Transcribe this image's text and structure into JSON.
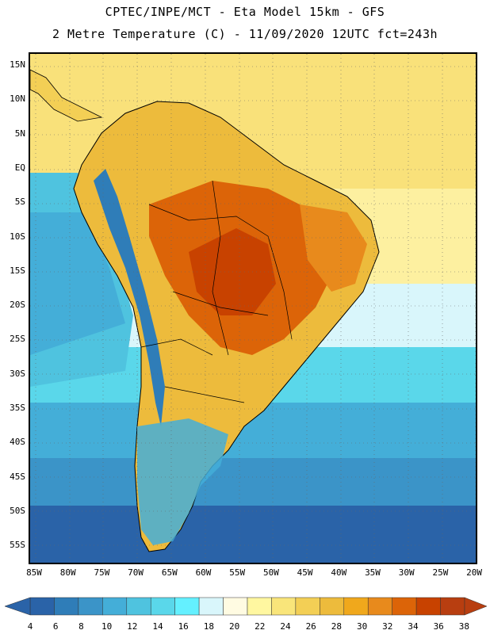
{
  "header": {
    "line1": "CPTEC/INPE/MCT -  Eta Model 15km - GFS",
    "line2": "2 Metre Temperature (C) - 11/09/2020 12UTC fct=243h"
  },
  "map": {
    "lat_labels": [
      "15N",
      "10N",
      "5N",
      "EQ",
      "5S",
      "10S",
      "15S",
      "20S",
      "25S",
      "30S",
      "35S",
      "40S",
      "45S",
      "50S",
      "55S"
    ],
    "lon_labels": [
      "85W",
      "80W",
      "75W",
      "70W",
      "65W",
      "60W",
      "55W",
      "50W",
      "45W",
      "40W",
      "35W",
      "30W",
      "25W",
      "20W"
    ]
  },
  "colorbar": {
    "labels": [
      "4",
      "6",
      "8",
      "10",
      "12",
      "14",
      "16",
      "18",
      "20",
      "22",
      "24",
      "26",
      "28",
      "30",
      "32",
      "34",
      "36",
      "38"
    ],
    "colors": [
      "#2a63a8",
      "#2f7db8",
      "#3b94c8",
      "#44aed8",
      "#4fc3df",
      "#5ad7ea",
      "#64f0ff",
      "#d9f6fb",
      "#fffbe2",
      "#fff7a0",
      "#f9e57a",
      "#f3cf55",
      "#edbb3c",
      "#f0a81c",
      "#e88a1c",
      "#dc6408",
      "#c84200",
      "#b83e10"
    ]
  }
}
